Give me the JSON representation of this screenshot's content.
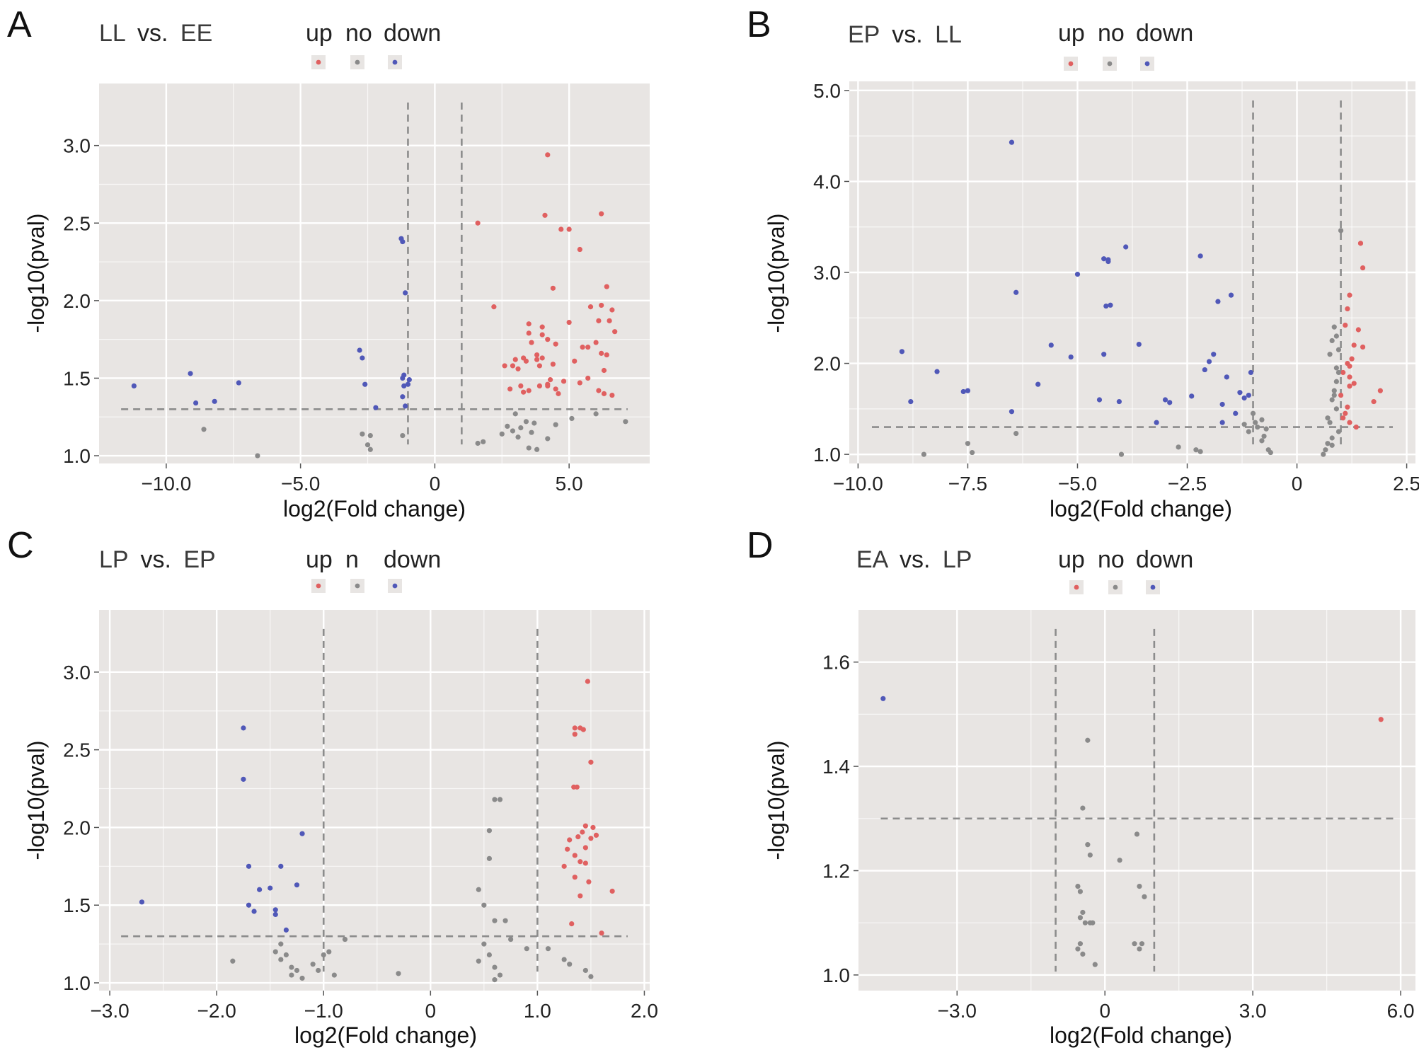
{
  "colors": {
    "up": "#e06060",
    "no": "#8a8a8a",
    "down": "#5058b8",
    "panel_bg": "#e8e5e3",
    "grid": "#ffffff",
    "threshold": "#8c8c8c"
  },
  "chart_data": [
    {
      "panel": "A",
      "type": "scatter",
      "comparison": {
        "a": "LL",
        "vs": "vs.",
        "b": "EE"
      },
      "legend": [
        "up",
        "no",
        "down"
      ],
      "xlabel": "log2(Fold change)",
      "ylabel": "-log10(pval)",
      "xlim": [
        -12.5,
        8.0
      ],
      "ylim": [
        0.95,
        3.4
      ],
      "xticks": [
        -10,
        -5,
        0,
        5
      ],
      "xtick_labels": [
        "−10.0",
        "−5.0",
        "0",
        "5.0"
      ],
      "yticks": [
        1.0,
        1.5,
        2.0,
        2.5,
        3.0
      ],
      "ytick_labels": [
        "1.0",
        "1.5",
        "2.0",
        "2.5",
        "3.0"
      ],
      "thresholds": {
        "fc": 1,
        "p": 1.3
      },
      "series": [
        {
          "name": "up",
          "x": [
            1.6,
            2.2,
            4.2,
            4.1,
            4.7,
            5.0,
            6.2,
            5.4,
            6.4,
            4.4,
            6.5,
            3.5,
            4.0,
            5.8,
            6.2,
            6.6,
            6.7,
            6.1,
            3.5,
            4.0,
            4.2,
            3.6,
            4.5,
            5.0,
            5.5,
            5.7,
            6.0,
            6.2,
            6.4,
            3.8,
            4.0,
            3.4,
            3.8,
            4.4,
            5.2,
            6.3,
            3.0,
            3.3,
            3.1,
            3.9,
            2.6,
            2.9,
            4.3,
            5.7,
            4.8,
            6.1,
            4.2,
            3.9,
            3.3,
            4.5,
            2.8,
            4.6,
            6.3,
            3.2,
            3.5,
            4.2,
            5.4,
            6.6
          ],
          "y": [
            2.5,
            1.96,
            2.94,
            2.55,
            2.46,
            2.46,
            2.56,
            2.33,
            2.09,
            2.08,
            1.87,
            1.85,
            1.78,
            1.96,
            1.97,
            1.94,
            1.8,
            1.87,
            1.79,
            1.83,
            1.75,
            1.73,
            1.72,
            1.86,
            1.7,
            1.7,
            1.73,
            1.66,
            1.65,
            1.65,
            1.63,
            1.61,
            1.62,
            1.59,
            1.61,
            1.55,
            1.62,
            1.63,
            1.56,
            1.58,
            1.58,
            1.58,
            1.49,
            1.5,
            1.48,
            1.42,
            1.45,
            1.45,
            1.41,
            1.43,
            1.43,
            1.4,
            1.4,
            1.45,
            1.42,
            1.46,
            1.47,
            1.39
          ]
        },
        {
          "name": "no",
          "x": [
            -8.6,
            -6.6,
            -2.7,
            -2.4,
            -2.5,
            -2.4,
            -1.2,
            1.6,
            1.8,
            3.0,
            3.4,
            3.7,
            2.9,
            3.6,
            4.2,
            3.1,
            2.5,
            3.5,
            3.8,
            4.5,
            5.1,
            6.0,
            7.1,
            2.7,
            3.2
          ],
          "y": [
            1.17,
            1.0,
            1.14,
            1.13,
            1.07,
            1.04,
            1.13,
            1.08,
            1.09,
            1.27,
            1.22,
            1.21,
            1.16,
            1.15,
            1.11,
            1.12,
            1.14,
            1.05,
            1.04,
            1.2,
            1.24,
            1.27,
            1.22,
            1.19,
            1.18
          ]
        },
        {
          "name": "down",
          "x": [
            -11.2,
            -9.1,
            -8.9,
            -8.2,
            -7.3,
            -2.8,
            -2.7,
            -2.6,
            -2.2,
            -1.25,
            -1.2,
            -1.1,
            -1.15,
            -1.2,
            -1.15,
            -1.2,
            -1.0,
            -1.1,
            -0.95
          ],
          "y": [
            1.45,
            1.53,
            1.34,
            1.35,
            1.47,
            1.68,
            1.63,
            1.46,
            1.31,
            2.4,
            2.38,
            2.05,
            1.52,
            1.5,
            1.45,
            1.38,
            1.46,
            1.32,
            1.49
          ]
        }
      ]
    },
    {
      "panel": "B",
      "type": "scatter",
      "comparison": {
        "a": "EP",
        "vs": "vs.",
        "b": "LL"
      },
      "legend": [
        "up",
        "no",
        "down"
      ],
      "xlabel": "log2(Fold change)",
      "ylabel": "-log10(pval)",
      "xlim": [
        -10.2,
        2.7
      ],
      "ylim": [
        0.9,
        5.1
      ],
      "xticks": [
        -10,
        -7.5,
        -5,
        -2.5,
        0,
        2.5
      ],
      "xtick_labels": [
        "−10.0",
        "−7.5",
        "−5.0",
        "−2.5",
        "0",
        "2.5"
      ],
      "yticks": [
        1.0,
        2.0,
        3.0,
        4.0,
        5.0
      ],
      "ytick_labels": [
        "1.0",
        "2.0",
        "3.0",
        "4.0",
        "5.0"
      ],
      "thresholds": {
        "fc": 1,
        "p": 1.3
      },
      "series": [
        {
          "name": "up",
          "x": [
            1.45,
            1.5,
            1.2,
            1.4,
            1.5,
            1.15,
            1.3,
            1.25,
            1.15,
            1.2,
            1.1,
            1.05,
            1.2,
            1.3,
            1.2,
            1.0,
            1.9,
            1.75,
            1.15,
            1.1,
            1.05,
            1.2,
            1.35
          ],
          "y": [
            3.32,
            3.05,
            2.75,
            2.37,
            2.18,
            2.6,
            2.2,
            2.05,
            2.0,
            1.97,
            2.42,
            1.9,
            1.85,
            1.78,
            1.75,
            1.65,
            1.7,
            1.58,
            1.52,
            1.45,
            1.4,
            1.35,
            1.3
          ]
        },
        {
          "name": "no",
          "x": [
            -8.5,
            -7.5,
            -6.4,
            -7.4,
            -4.0,
            -2.7,
            -2.3,
            -2.2,
            -1.0,
            -0.9,
            -0.8,
            -0.7,
            -0.75,
            -0.8,
            -1.1,
            -1.2,
            -0.95,
            -0.6,
            -0.65,
            0.6,
            0.65,
            0.7,
            0.8,
            0.75,
            0.8,
            0.85,
            0.9,
            0.95,
            0.9,
            0.85,
            0.8,
            0.75,
            0.9,
            0.95,
            0.85,
            0.9,
            0.7,
            0.8,
            0.95,
            1.0
          ],
          "y": [
            1.0,
            1.12,
            1.23,
            1.02,
            1.0,
            1.08,
            1.05,
            1.03,
            1.45,
            1.3,
            1.38,
            1.28,
            1.2,
            1.15,
            1.25,
            1.33,
            1.35,
            1.02,
            1.05,
            1.0,
            1.05,
            1.12,
            1.18,
            1.35,
            1.6,
            1.7,
            1.8,
            2.15,
            2.3,
            2.4,
            2.25,
            2.1,
            1.95,
            1.9,
            1.65,
            1.5,
            1.4,
            1.1,
            1.25,
            3.46
          ]
        },
        {
          "name": "down",
          "x": [
            -9.0,
            -8.8,
            -8.2,
            -7.6,
            -7.5,
            -6.5,
            -6.4,
            -6.5,
            -5.9,
            -5.6,
            -5.15,
            -5.0,
            -4.5,
            -4.4,
            -4.3,
            -4.35,
            -4.25,
            -4.05,
            -3.9,
            -3.6,
            -4.3,
            -4.4,
            -2.9,
            -2.2,
            -2.4,
            -2.1,
            -1.8,
            -1.9,
            -1.7,
            -1.6,
            -1.5,
            -1.3,
            -1.2,
            -1.1,
            -1.05,
            -1.4,
            -1.7,
            -2.0,
            -3.2,
            -3.0
          ],
          "y": [
            2.13,
            1.58,
            1.91,
            1.69,
            1.7,
            1.47,
            2.78,
            4.43,
            1.77,
            2.2,
            2.07,
            2.98,
            1.6,
            3.15,
            3.14,
            2.63,
            2.64,
            1.58,
            3.28,
            2.21,
            3.12,
            2.1,
            1.57,
            3.18,
            1.64,
            1.93,
            2.68,
            2.1,
            1.55,
            1.85,
            2.75,
            1.68,
            1.62,
            1.65,
            1.9,
            1.45,
            1.35,
            2.02,
            1.35,
            1.6
          ]
        }
      ]
    },
    {
      "panel": "C",
      "type": "scatter",
      "comparison": {
        "a": "LP",
        "vs": "vs.",
        "b": "EP"
      },
      "legend": [
        "up",
        "n",
        "down"
      ],
      "xlabel": "log2(Fold change)",
      "ylabel": "-log10(pval)",
      "xlim": [
        -3.1,
        2.05
      ],
      "ylim": [
        0.95,
        3.4
      ],
      "xticks": [
        -3,
        -2,
        -1,
        0,
        1,
        2
      ],
      "xtick_labels": [
        "−3.0",
        "−2.0",
        "−1.0",
        "0",
        "1.0",
        "2.0"
      ],
      "yticks": [
        1.0,
        1.5,
        2.0,
        2.5,
        3.0
      ],
      "ytick_labels": [
        "1.0",
        "1.5",
        "2.0",
        "2.5",
        "3.0"
      ],
      "thresholds": {
        "fc": 1,
        "p": 1.3
      },
      "series": [
        {
          "name": "up",
          "x": [
            1.47,
            1.35,
            1.4,
            1.43,
            1.35,
            1.5,
            1.34,
            1.37,
            1.45,
            1.42,
            1.52,
            1.38,
            1.3,
            1.45,
            1.5,
            1.35,
            1.28,
            1.4,
            1.45,
            1.25,
            1.55,
            1.48,
            1.35,
            1.7,
            1.4,
            1.32,
            1.6
          ],
          "y": [
            2.94,
            2.64,
            2.64,
            2.63,
            2.6,
            2.42,
            2.26,
            2.26,
            2.01,
            1.97,
            2.0,
            1.94,
            1.92,
            1.87,
            1.93,
            1.82,
            1.86,
            1.78,
            1.77,
            1.75,
            1.95,
            1.65,
            1.68,
            1.59,
            1.56,
            1.38,
            1.32
          ]
        },
        {
          "name": "no",
          "x": [
            -1.85,
            -1.4,
            -1.45,
            -1.4,
            -1.35,
            -1.3,
            -1.25,
            -1.3,
            -1.2,
            -1.1,
            -1.05,
            -1.0,
            -0.95,
            -0.9,
            -0.3,
            0.45,
            0.5,
            0.55,
            0.6,
            0.55,
            0.6,
            0.65,
            0.7,
            0.5,
            0.55,
            0.6,
            0.65,
            0.6,
            0.75,
            0.9,
            1.1,
            1.25,
            1.3,
            1.45,
            1.5,
            -0.8,
            0.45
          ],
          "y": [
            1.14,
            1.25,
            1.2,
            1.15,
            1.18,
            1.1,
            1.08,
            1.05,
            1.03,
            1.12,
            1.08,
            1.18,
            1.2,
            1.05,
            1.06,
            1.6,
            1.5,
            1.98,
            2.18,
            1.8,
            1.4,
            2.18,
            1.4,
            1.25,
            1.18,
            1.1,
            1.05,
            1.02,
            1.28,
            1.22,
            1.22,
            1.15,
            1.12,
            1.08,
            1.04,
            1.28,
            1.14
          ]
        },
        {
          "name": "down",
          "x": [
            -2.7,
            -1.75,
            -1.75,
            -1.7,
            -1.7,
            -1.65,
            -1.6,
            -1.5,
            -1.45,
            -1.45,
            -1.4,
            -1.35,
            -1.25,
            -1.2
          ],
          "y": [
            1.52,
            2.64,
            2.31,
            1.75,
            1.5,
            1.46,
            1.6,
            1.61,
            1.47,
            1.44,
            1.75,
            1.34,
            1.63,
            1.96
          ]
        }
      ]
    },
    {
      "panel": "D",
      "type": "scatter",
      "comparison": {
        "a": "EA",
        "vs": "vs.",
        "b": "LP"
      },
      "legend": [
        "up",
        "no",
        "down"
      ],
      "xlabel": "log2(Fold change)",
      "ylabel": "-log10(pval)",
      "xlim": [
        -5.0,
        6.3
      ],
      "ylim": [
        0.97,
        1.7
      ],
      "xticks": [
        -3,
        0,
        3,
        6
      ],
      "xtick_labels": [
        "−3.0",
        "0",
        "3.0",
        "6.0"
      ],
      "yticks": [
        1.0,
        1.2,
        1.4,
        1.6
      ],
      "ytick_labels": [
        "1.0",
        "1.2",
        "1.4",
        "1.6"
      ],
      "thresholds": {
        "fc": 1,
        "p": 1.3
      },
      "series": [
        {
          "name": "up",
          "x": [
            5.6
          ],
          "y": [
            1.49
          ]
        },
        {
          "name": "no",
          "x": [
            -0.35,
            -0.45,
            -0.35,
            -0.55,
            -0.5,
            -0.3,
            -0.45,
            -0.5,
            -0.4,
            -0.3,
            -0.5,
            -0.55,
            -0.45,
            -0.2,
            0.3,
            0.65,
            0.7,
            0.8,
            0.75,
            0.6,
            0.7,
            -0.25
          ],
          "y": [
            1.45,
            1.32,
            1.25,
            1.17,
            1.16,
            1.23,
            1.12,
            1.11,
            1.1,
            1.1,
            1.06,
            1.05,
            1.04,
            1.02,
            1.22,
            1.27,
            1.17,
            1.15,
            1.06,
            1.06,
            1.05,
            1.1
          ]
        },
        {
          "name": "down",
          "x": [
            -4.5
          ],
          "y": [
            1.53
          ]
        }
      ]
    }
  ]
}
